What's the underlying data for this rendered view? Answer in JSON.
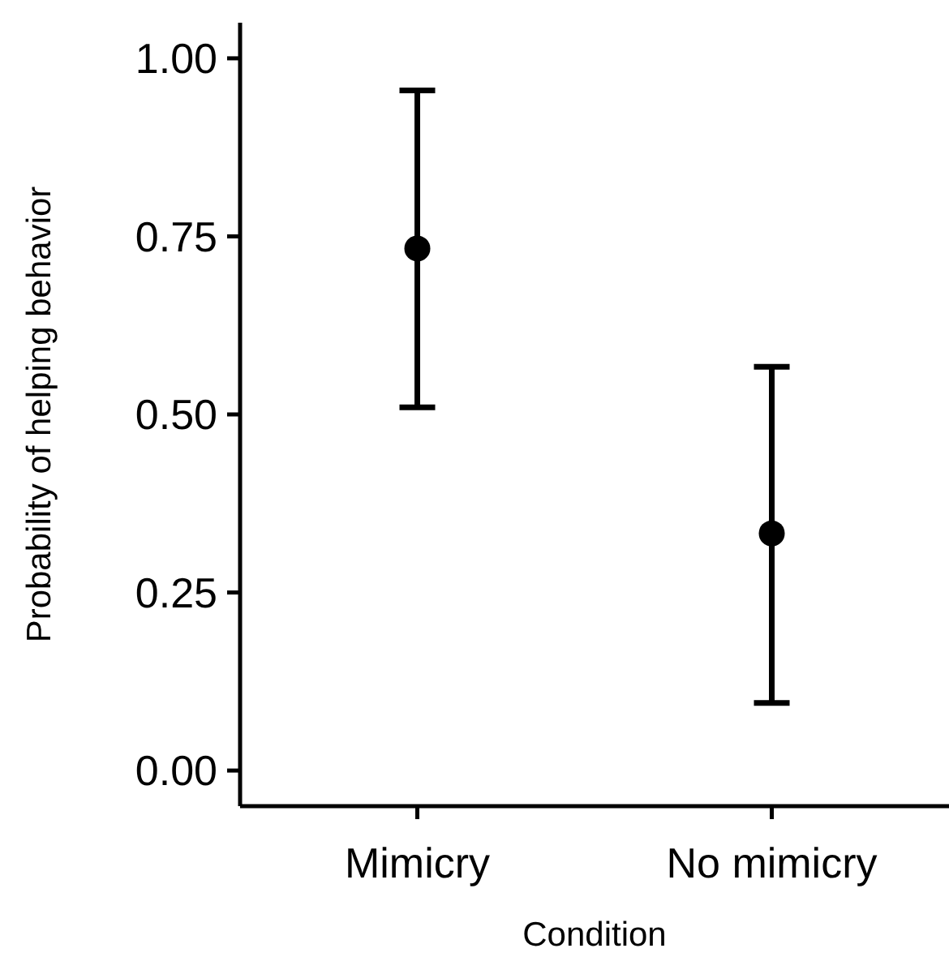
{
  "chart_data": {
    "type": "scatter",
    "xlabel": "Condition",
    "ylabel": "Probability of helping behavior",
    "categories": [
      "Mimicry",
      "No mimicry"
    ],
    "values": [
      0.733,
      0.333
    ],
    "errors": [
      [
        0.51,
        0.955
      ],
      [
        0.095,
        0.567
      ]
    ],
    "color": "#000000",
    "marker": "circle",
    "ylim": [
      -0.05,
      1.05
    ],
    "yticks": [
      {
        "value": 0,
        "label": "0.00"
      },
      {
        "value": 0.25,
        "label": "0.25"
      },
      {
        "value": 0.5,
        "label": "0.50"
      },
      {
        "value": 0.75,
        "label": "0.75"
      },
      {
        "value": 1,
        "label": "1.00"
      }
    ]
  }
}
